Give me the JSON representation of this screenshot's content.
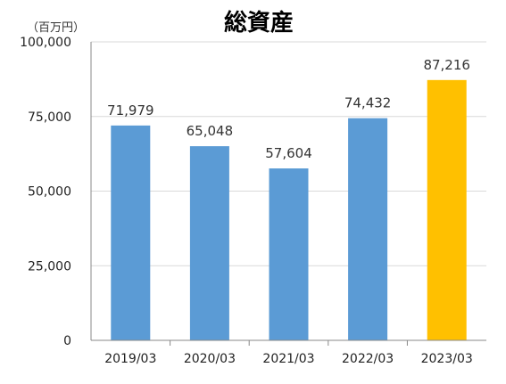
{
  "chart_data": {
    "type": "bar",
    "title": "総資産",
    "unit_label": "（百万円）",
    "categories": [
      "2019/03",
      "2020/03",
      "2021/03",
      "2022/03",
      "2023/03"
    ],
    "values": [
      71979,
      65048,
      57604,
      74432,
      87216
    ],
    "value_labels": [
      "71,979",
      "65,048",
      "57,604",
      "74,432",
      "87,216"
    ],
    "ylim": [
      0,
      100000
    ],
    "yticks": [
      0,
      25000,
      50000,
      75000,
      100000
    ],
    "ytick_labels": [
      "0",
      "25,000",
      "50,000",
      "75,000",
      "100,000"
    ],
    "grid": true,
    "colors": {
      "default_bar": "#5b9bd5",
      "highlight_bar": "#ffc000",
      "grid": "#d9d9d9",
      "axis": "#888888"
    },
    "highlight_index": 4
  }
}
